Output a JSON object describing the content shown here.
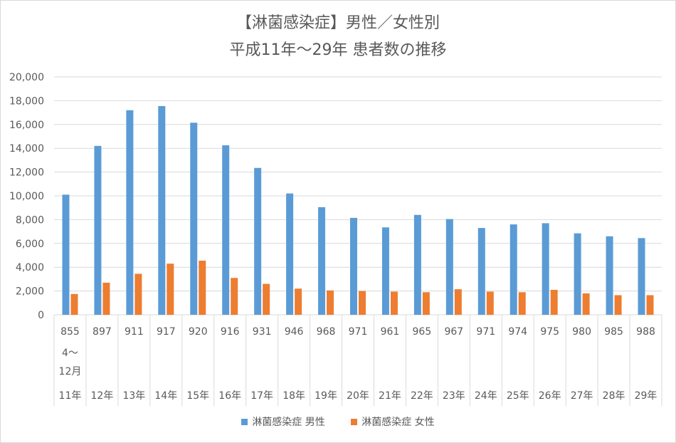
{
  "chart_data": {
    "type": "bar",
    "title_line1": "【淋菌感染症】男性／女性別",
    "title_line2": "平成11年〜29年 患者数の推移",
    "ylim": [
      0,
      20000
    ],
    "ytick_labels": [
      "0",
      "2,000",
      "4,000",
      "6,000",
      "8,000",
      "10,000",
      "12,000",
      "14,000",
      "16,000",
      "18,000",
      "20,000"
    ],
    "grid": true,
    "legend_position": "bottom",
    "category_rows": [
      [
        "855",
        "897",
        "911",
        "917",
        "920",
        "916",
        "931",
        "946",
        "968",
        "971",
        "961",
        "965",
        "967",
        "971",
        "974",
        "975",
        "980",
        "985",
        "988"
      ],
      [
        "4〜",
        "",
        "",
        "",
        "",
        "",
        "",
        "",
        "",
        "",
        "",
        "",
        "",
        "",
        "",
        "",
        "",
        "",
        ""
      ],
      [
        "12月",
        "",
        "",
        "",
        "",
        "",
        "",
        "",
        "",
        "",
        "",
        "",
        "",
        "",
        "",
        "",
        "",
        "",
        ""
      ],
      [
        "11年",
        "12年",
        "13年",
        "14年",
        "15年",
        "16年",
        "17年",
        "18年",
        "19年",
        "20年",
        "21年",
        "22年",
        "23年",
        "24年",
        "25年",
        "26年",
        "27年",
        "28年",
        "29年"
      ]
    ],
    "series": [
      {
        "name": "淋菌感染症 男性",
        "color": "#5b9bd5",
        "values": [
          10100,
          14200,
          17200,
          17550,
          16150,
          14250,
          12350,
          10200,
          9050,
          8150,
          7350,
          8400,
          8050,
          7300,
          7600,
          7700,
          6850,
          6600,
          6450
        ]
      },
      {
        "name": "淋菌感染症 女性",
        "color": "#ed7d31",
        "values": [
          1750,
          2700,
          3450,
          4300,
          4550,
          3100,
          2600,
          2200,
          2050,
          2000,
          1950,
          1900,
          2150,
          1950,
          1900,
          2100,
          1800,
          1650,
          1650
        ]
      }
    ]
  }
}
